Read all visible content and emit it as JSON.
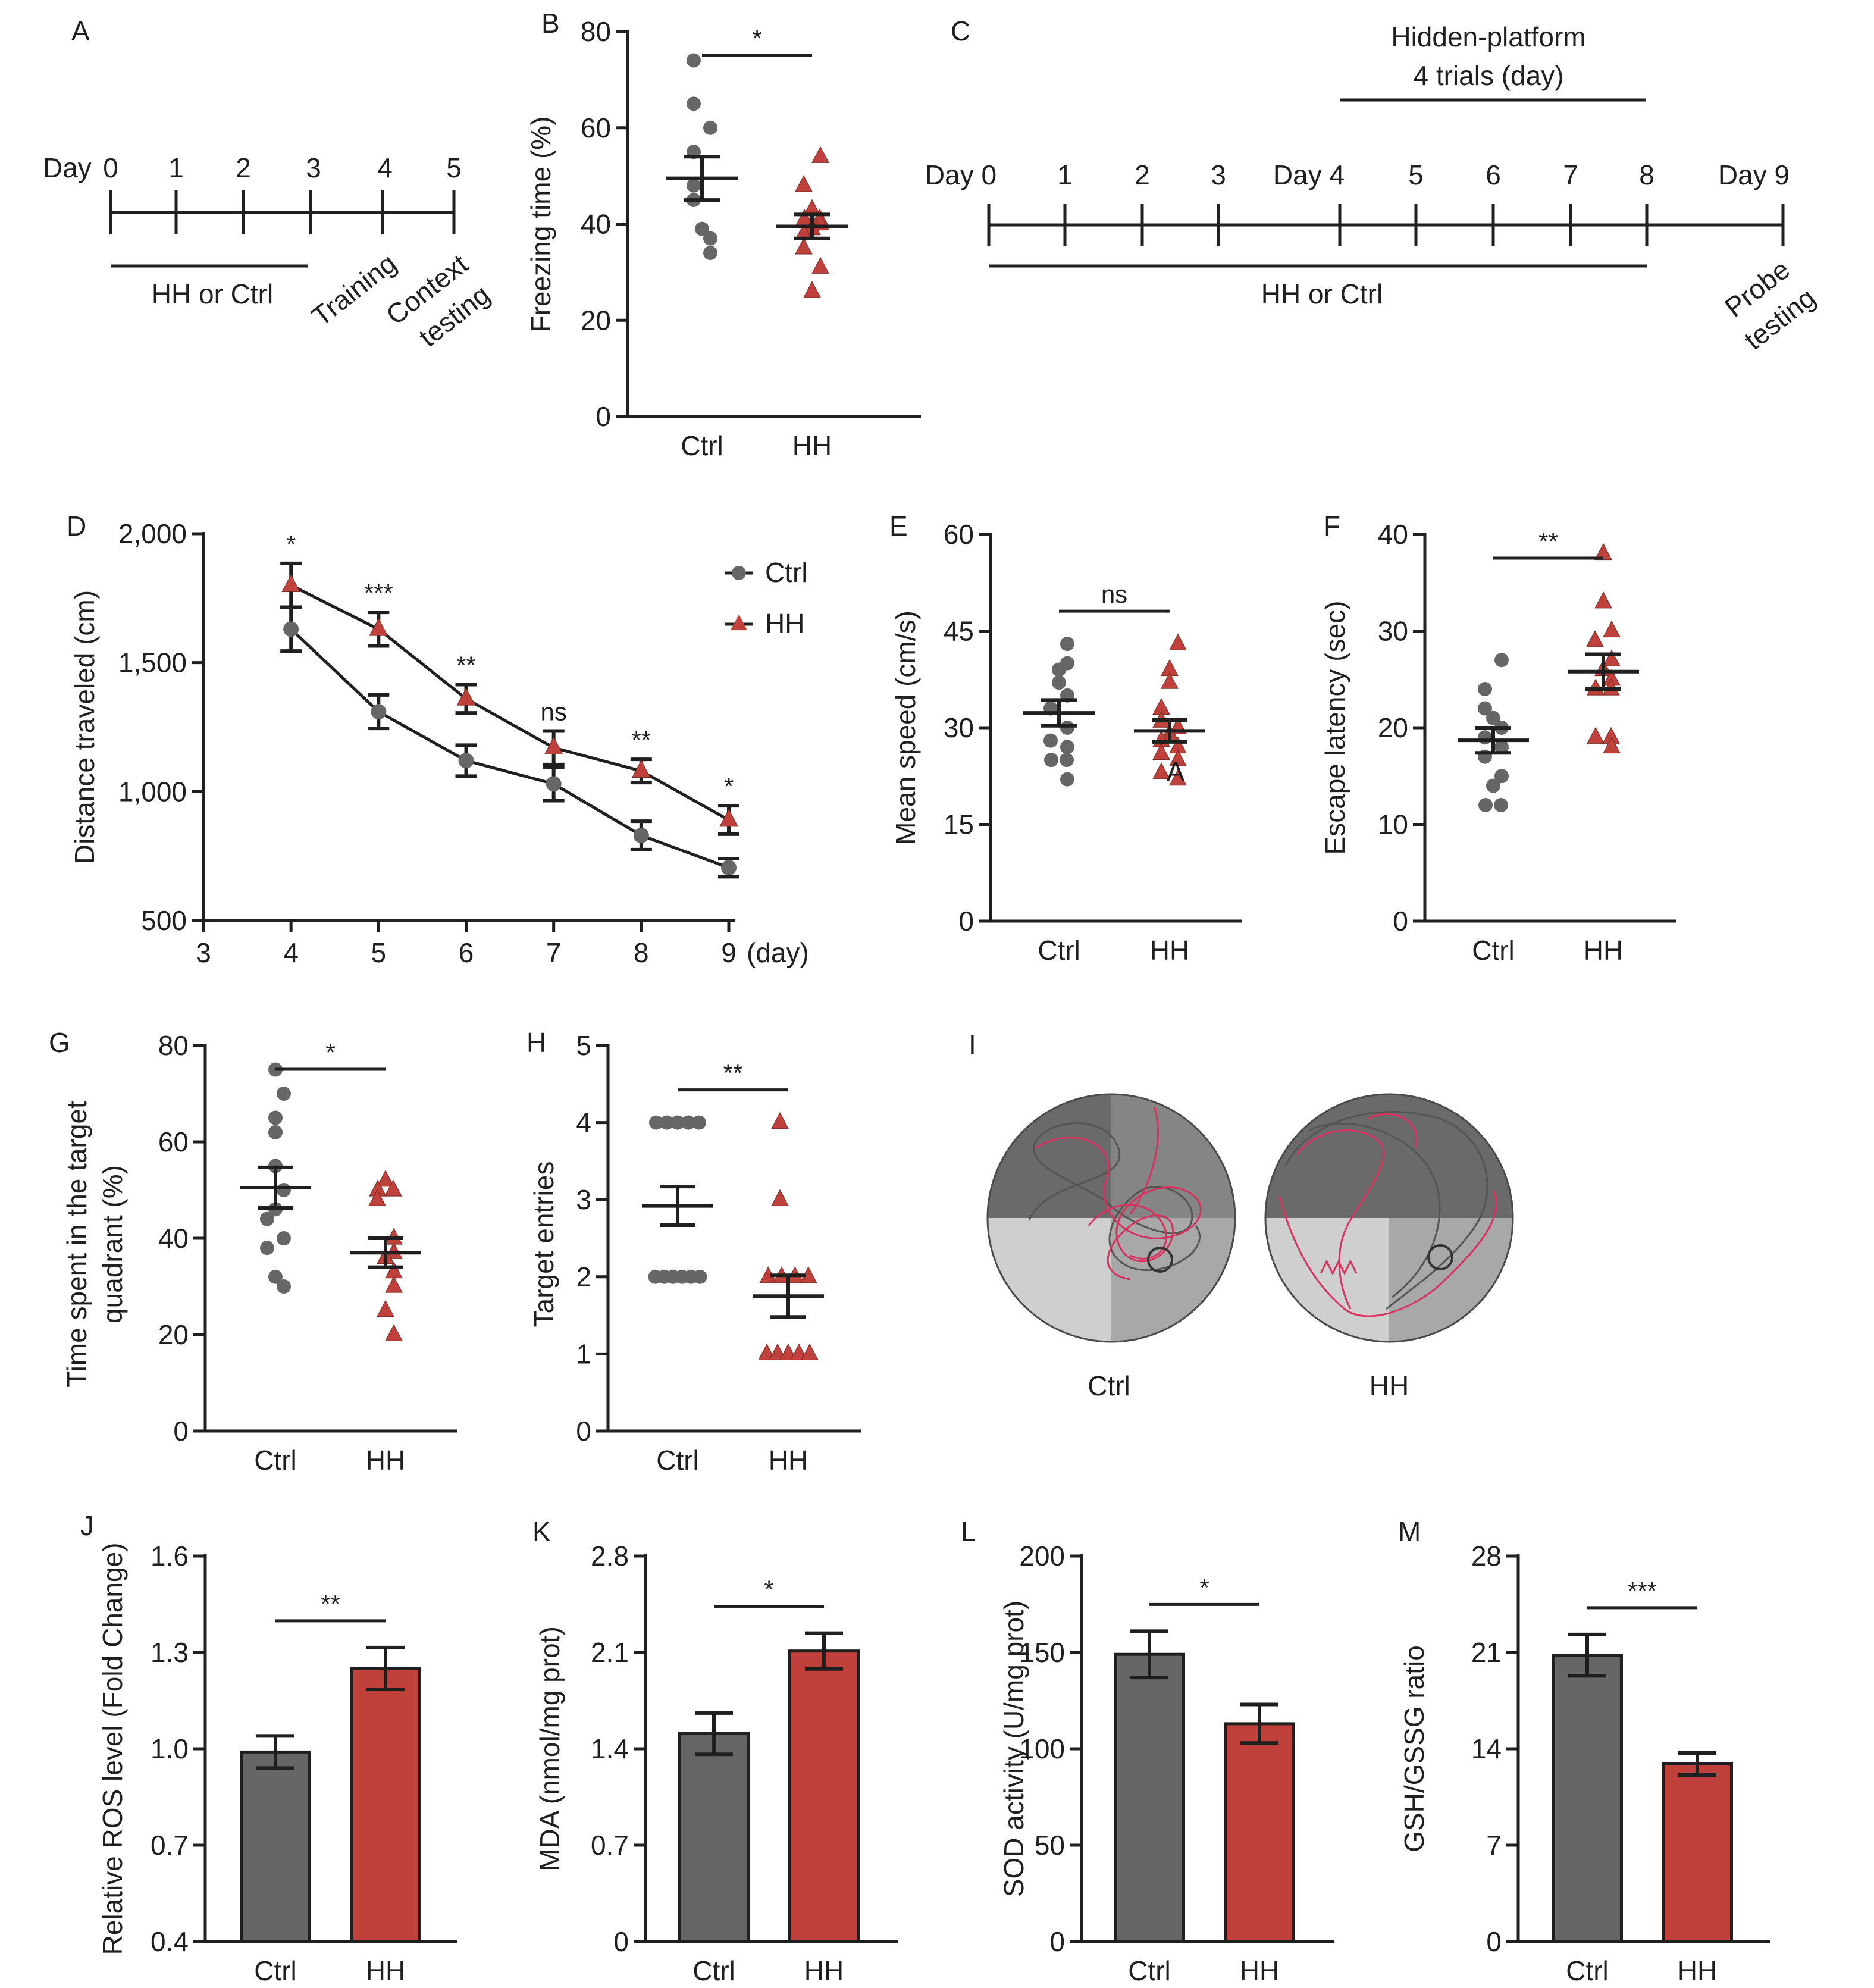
{
  "colors": {
    "ctrl": "#666666",
    "hh": "#c0413b",
    "text": "#1f1f1f",
    "pathHH": "#d6335f",
    "pathCtrl": "#555555"
  },
  "panels": {
    "A": {
      "letter": "A",
      "day_prefix": "Day",
      "days": [
        "0",
        "1",
        "2",
        "3",
        "4",
        "5"
      ],
      "treatment_label": "HH or Ctrl",
      "event_labels": [
        "Training",
        "Context",
        "testing"
      ]
    },
    "C": {
      "letter": "C",
      "header": [
        "Hidden-platform",
        "4 trials (day)"
      ],
      "ticks": [
        "Day 0",
        "1",
        "2",
        "3",
        "Day 4",
        "5",
        "6",
        "7",
        "8",
        "Day 9"
      ],
      "treatment_label": "HH or Ctrl",
      "probe_label": [
        "Probe",
        "testing"
      ]
    },
    "I": {
      "letter": "I",
      "labels": [
        "Ctrl",
        "HH"
      ]
    }
  },
  "chart_data": [
    {
      "panel": "B",
      "type": "scatter",
      "ylabel": "Freezing time (%)",
      "ylim": [
        0,
        80
      ],
      "yticks": [
        "0",
        "20",
        "40",
        "60",
        "80"
      ],
      "categories": [
        "Ctrl",
        "HH"
      ],
      "series": [
        {
          "name": "Ctrl",
          "values": [
            74,
            65,
            60,
            55,
            48,
            45,
            39,
            37,
            34
          ],
          "mean": 49.5,
          "sem": 4.5
        },
        {
          "name": "HH",
          "values": [
            54,
            48,
            43,
            41,
            41,
            40,
            39,
            38,
            35,
            31,
            26
          ],
          "mean": 39.5,
          "sem": 2.5
        }
      ],
      "significance": "*"
    },
    {
      "panel": "D",
      "type": "line",
      "ylabel": "Distance traveled (cm)",
      "xlabel": "(day)",
      "xlim": [
        3,
        9
      ],
      "ylim": [
        500,
        2000
      ],
      "xticks": [
        "3",
        "4",
        "5",
        "6",
        "7",
        "8",
        "9"
      ],
      "yticks": [
        "500",
        "1,000",
        "1,500",
        "2,000"
      ],
      "x": [
        4,
        5,
        6,
        7,
        8,
        9
      ],
      "series": [
        {
          "name": "Ctrl",
          "values": [
            1630,
            1310,
            1120,
            1030,
            830,
            705
          ],
          "sem": [
            85,
            65,
            60,
            65,
            55,
            35
          ]
        },
        {
          "name": "HH",
          "values": [
            1800,
            1630,
            1360,
            1170,
            1080,
            890
          ],
          "sem": [
            85,
            65,
            55,
            65,
            45,
            55
          ]
        }
      ],
      "significance": [
        "*",
        "***",
        "**",
        "ns",
        "**",
        "*"
      ],
      "legend": "top-right"
    },
    {
      "panel": "E",
      "type": "scatter",
      "ylabel": "Mean speed (cm/s)",
      "ylim": [
        0,
        60
      ],
      "yticks": [
        "0",
        "15",
        "30",
        "45",
        "60"
      ],
      "categories": [
        "Ctrl",
        "HH"
      ],
      "series": [
        {
          "name": "Ctrl",
          "values": [
            43,
            40,
            39,
            37,
            35,
            33,
            30,
            28,
            27,
            25,
            25,
            22
          ],
          "mean": 32.3,
          "sem": 2
        },
        {
          "name": "HH",
          "values": [
            43,
            39,
            37,
            33,
            31,
            30,
            29,
            28,
            27,
            26,
            25,
            23,
            22
          ],
          "mean": 29.5,
          "sem": 1.7
        }
      ],
      "significance": "ns",
      "annotation": "A"
    },
    {
      "panel": "F",
      "type": "scatter",
      "ylabel": "Escape latency (sec)",
      "ylim": [
        0,
        40
      ],
      "yticks": [
        "0",
        "10",
        "20",
        "30",
        "40"
      ],
      "categories": [
        "Ctrl",
        "HH"
      ],
      "series": [
        {
          "name": "Ctrl",
          "values": [
            27,
            24,
            22,
            21,
            20,
            19,
            18,
            17,
            15,
            14,
            12,
            12
          ],
          "mean": 18.7,
          "sem": 1.3
        },
        {
          "name": "HH",
          "values": [
            38,
            33,
            30,
            29,
            27,
            26,
            25,
            24,
            24,
            19,
            19,
            18
          ],
          "mean": 25.8,
          "sem": 1.8
        }
      ],
      "significance": "**"
    },
    {
      "panel": "G",
      "type": "scatter",
      "ylabel": "Time spent in the target quadrant (%)",
      "ylim": [
        0,
        80
      ],
      "yticks": [
        "0",
        "20",
        "40",
        "60",
        "80"
      ],
      "categories": [
        "Ctrl",
        "HH"
      ],
      "series": [
        {
          "name": "Ctrl",
          "values": [
            75,
            70,
            65,
            62,
            55,
            50,
            46,
            44,
            40,
            38,
            32,
            30
          ],
          "mean": 50.5,
          "sem": 4.2
        },
        {
          "name": "HH",
          "values": [
            52,
            50,
            50,
            48,
            40,
            37,
            36,
            33,
            30,
            25,
            20
          ],
          "mean": 37,
          "sem": 3
        }
      ],
      "significance": "*"
    },
    {
      "panel": "H",
      "type": "scatter",
      "ylabel": "Target entries",
      "ylim": [
        0,
        5
      ],
      "yticks": [
        "0",
        "1",
        "2",
        "3",
        "4",
        "5"
      ],
      "categories": [
        "Ctrl",
        "HH"
      ],
      "series": [
        {
          "name": "Ctrl",
          "values": [
            4,
            4,
            4,
            4,
            4,
            2,
            2,
            2,
            2,
            2,
            2
          ],
          "mean": 2.92,
          "sem": 0.25
        },
        {
          "name": "HH",
          "values": [
            4,
            3,
            2,
            2,
            2,
            2,
            1,
            1,
            1,
            1,
            1
          ],
          "mean": 1.75,
          "sem": 0.27
        }
      ],
      "significance": "**"
    },
    {
      "panel": "J",
      "type": "bar",
      "ylabel": "Relative ROS level (Fold Change)",
      "ylim": [
        0.4,
        1.6
      ],
      "yticks": [
        "0.4",
        "0.7",
        "1.0",
        "1.3",
        "1.6"
      ],
      "categories": [
        "Ctrl",
        "HH"
      ],
      "values": [
        0.99,
        1.25
      ],
      "sem": [
        0.05,
        0.065
      ],
      "significance": "**"
    },
    {
      "panel": "K",
      "type": "bar",
      "ylabel": "MDA (nmol/mg prot)",
      "ylim": [
        0,
        2.8
      ],
      "yticks": [
        "0",
        "0.7",
        "1.4",
        "2.1",
        "2.8"
      ],
      "categories": [
        "Ctrl",
        "HH"
      ],
      "values": [
        1.51,
        2.11
      ],
      "sem": [
        0.15,
        0.13
      ],
      "significance": "*"
    },
    {
      "panel": "L",
      "type": "bar",
      "ylabel": "SOD activity (U/mg prot)",
      "ylim": [
        0,
        200
      ],
      "yticks": [
        "0",
        "50",
        "100",
        "150",
        "200"
      ],
      "categories": [
        "Ctrl",
        "HH"
      ],
      "values": [
        149,
        113
      ],
      "sem": [
        12,
        10
      ],
      "significance": "*"
    },
    {
      "panel": "M",
      "type": "bar",
      "ylabel": "GSH/GSSG ratio",
      "ylim": [
        0,
        28
      ],
      "yticks": [
        "0",
        "7",
        "14",
        "21",
        "28"
      ],
      "categories": [
        "Ctrl",
        "HH"
      ],
      "values": [
        20.8,
        12.9
      ],
      "sem": [
        1.5,
        0.8
      ],
      "significance": "***"
    }
  ]
}
